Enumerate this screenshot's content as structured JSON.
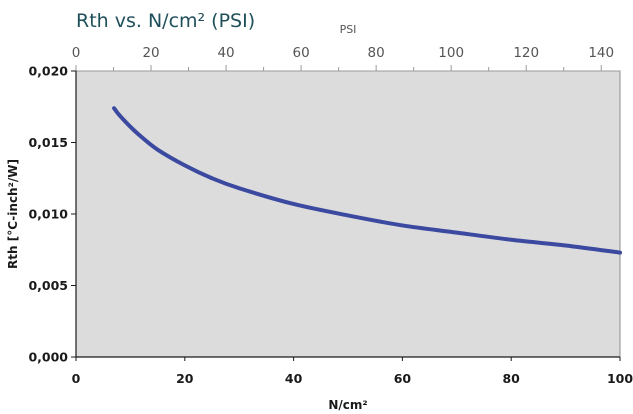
{
  "chart_data": {
    "type": "line",
    "title": "Rth vs. N/cm² (PSI)",
    "xlabel": "N/cm²",
    "ylabel": "Rth [°C-inch²/W]",
    "x2label": "PSI",
    "xlim": [
      0,
      100
    ],
    "ylim": [
      0,
      0.02
    ],
    "x2lim": [
      0,
      145
    ],
    "xticks": [
      "0",
      "20",
      "40",
      "60",
      "80",
      "100"
    ],
    "yticks": [
      "0,000",
      "0,005",
      "0,010",
      "0,015",
      "0,020"
    ],
    "x2ticks": [
      "0",
      "20",
      "40",
      "60",
      "80",
      "100",
      "120",
      "140"
    ],
    "grid": false,
    "series": [
      {
        "x": [
          7,
          8,
          10,
          12,
          15,
          20,
          25,
          30,
          40,
          50,
          60,
          70,
          80,
          90,
          100
        ],
        "y": [
          0.0174,
          0.0169,
          0.0161,
          0.0154,
          0.0145,
          0.0134,
          0.0125,
          0.0118,
          0.0107,
          0.0099,
          0.0092,
          0.0087,
          0.0082,
          0.0078,
          0.0073
        ]
      }
    ],
    "colors": {
      "plot_background": "#dcdcdc",
      "line": "#3b4aa0",
      "title": "#1f4f5b",
      "top_axis_text": "#555555",
      "bottom_axis_text": "#1a1a1a"
    }
  }
}
